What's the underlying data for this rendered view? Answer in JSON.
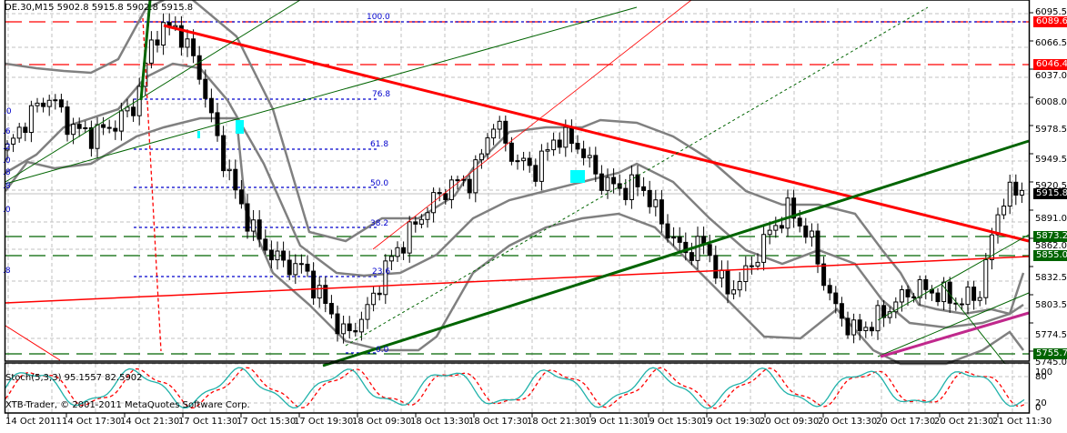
{
  "window": {
    "symbol_header": "DE.30,M15  5902.8 5915.8 5902.8 5915.8",
    "symbol": "DE.30",
    "timeframe": "M15",
    "ohlc": {
      "open": "5902.8",
      "high": "5915.8",
      "low": "5902.8",
      "close": "5915.8"
    }
  },
  "indicator": {
    "label": "Stoch(5,3,3) 95.1557 82.5902",
    "main_value": "95.1557",
    "signal_value": "82.5902",
    "levels": [
      "100",
      "80",
      "20",
      "0"
    ]
  },
  "copyright": "XTB-Trader, © 2001-2011 MetaQuotes Software Corp.",
  "price_axis": {
    "ticks": [
      "6095.5",
      "6066.5",
      "6037.0",
      "6008.0",
      "5978.5",
      "5949.5",
      "5920.5",
      "5891.0",
      "5862.0",
      "5832.5",
      "5803.5",
      "5774.5",
      "5745.0"
    ],
    "tags": [
      {
        "value": "6089.6",
        "color": "#ff0000"
      },
      {
        "value": "6046.4",
        "color": "#ff0000"
      },
      {
        "value": "5915.8",
        "color": "#000000"
      },
      {
        "value": "5873.2",
        "color": "#006400"
      },
      {
        "value": "5855.0",
        "color": "#006400"
      },
      {
        "value": "5755.7",
        "color": "#006400"
      }
    ]
  },
  "time_axis": {
    "labels": [
      "14 Oct 2011",
      "14 Oct 17:30",
      "14 Oct 21:30",
      "17 Oct 11:30",
      "17 Oct 15:30",
      "17 Oct 19:30",
      "18 Oct 09:30",
      "18 Oct 13:30",
      "18 Oct 17:30",
      "18 Oct 21:30",
      "19 Oct 11:30",
      "19 Oct 15:30",
      "19 Oct 19:30",
      "20 Oct 09:30",
      "20 Oct 13:30",
      "20 Oct 17:30",
      "20 Oct 21:30",
      "21 Oct 11:30"
    ]
  },
  "fibonacci": {
    "levels": [
      "100.0",
      "76.8",
      "61.8",
      "50.0",
      "38.2",
      "23.6",
      "0.0"
    ],
    "left_partial": [
      ".0",
      ".6",
      ".2",
      ".0",
      ".8",
      ".8",
      ".0",
      ".8"
    ]
  },
  "colors": {
    "background": "#ffffff",
    "grid": "#c0c0c0",
    "candle_bull": "#ffffff",
    "candle_bear": "#000000",
    "bollinger": "#808080",
    "resistance": "#ff0000",
    "support": "#006400",
    "fib": "#0000cc",
    "trend_magenta": "#c0288c",
    "stoch_main": "#20b2aa",
    "stoch_signal": "#ff0000",
    "highlight": "#00ffff"
  },
  "chart_data": {
    "type": "candlestick",
    "title": "DE.30,M15",
    "xlabel": "",
    "ylabel": "",
    "ylim": [
      5745.0,
      6095.5
    ],
    "grid": true,
    "x": [
      "14 Oct 2011",
      "14 Oct 17:30",
      "14 Oct 21:30",
      "17 Oct 11:30",
      "17 Oct 15:30",
      "17 Oct 19:30",
      "18 Oct 09:30",
      "18 Oct 13:30",
      "18 Oct 17:30",
      "18 Oct 21:30",
      "19 Oct 11:30",
      "19 Oct 15:30",
      "19 Oct 19:30",
      "20 Oct 09:30",
      "20 Oct 13:30",
      "20 Oct 17:30",
      "20 Oct 21:30",
      "21 Oct 11:30"
    ],
    "close_path": [
      5955,
      5990,
      6010,
      5978,
      5970,
      5980,
      6000,
      6075,
      6080,
      6040,
      5960,
      5900,
      5860,
      5840,
      5835,
      5800,
      5765,
      5790,
      5840,
      5870,
      5900,
      5920,
      5925,
      5985,
      5945,
      5935,
      5970,
      5960,
      5925,
      5915,
      5920,
      5880,
      5850,
      5860,
      5810,
      5830,
      5870,
      5895,
      5865,
      5800,
      5770,
      5780,
      5800,
      5815,
      5810,
      5800,
      5810,
      5905,
      5915.8
    ],
    "horizontal_levels": [
      {
        "name": "resistance-1",
        "value": 6089.6,
        "style": "dashed",
        "color": "#ff0000"
      },
      {
        "name": "resistance-2",
        "value": 6046.4,
        "style": "dashed",
        "color": "#ff0000"
      },
      {
        "name": "support-1",
        "value": 5873.2,
        "style": "dashed",
        "color": "#006400"
      },
      {
        "name": "support-2",
        "value": 5855.0,
        "style": "dashed",
        "color": "#006400"
      },
      {
        "name": "support-3",
        "value": 5755.7,
        "style": "dashed",
        "color": "#006400"
      }
    ],
    "current_price": 5915.8,
    "indicators": [
      {
        "name": "Bollinger Bands",
        "color": "#808080"
      },
      {
        "name": "Stoch(5,3,3)",
        "main": 95.1557,
        "signal": 82.5902,
        "ylim": [
          0,
          100
        ],
        "levels": [
          20,
          80
        ]
      }
    ],
    "annotations": [
      "Fibonacci retracement 100.0/76.8/61.8/50.0/38.2/23.6/0.0",
      "Trendlines (red, green, magenta)"
    ]
  }
}
